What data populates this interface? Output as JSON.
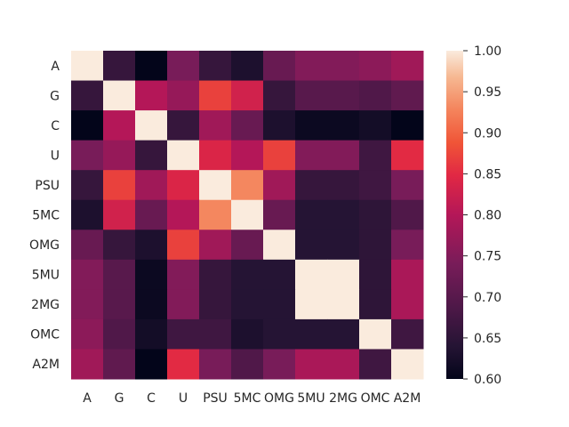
{
  "chart_data": {
    "type": "heatmap",
    "title": "",
    "xlabel": "",
    "ylabel": "",
    "row_labels": [
      "A",
      "G",
      "C",
      "U",
      "PSU",
      "5MC",
      "OMG",
      "5MU",
      "2MG",
      "OMC",
      "A2M"
    ],
    "col_labels": [
      "A",
      "G",
      "C",
      "U",
      "PSU",
      "5MC",
      "OMG",
      "5MU",
      "2MG",
      "OMC",
      "A2M"
    ],
    "values": [
      [
        1.0,
        0.66,
        0.6,
        0.74,
        0.66,
        0.63,
        0.72,
        0.75,
        0.75,
        0.76,
        0.78
      ],
      [
        0.66,
        1.0,
        0.8,
        0.77,
        0.87,
        0.83,
        0.66,
        0.7,
        0.7,
        0.69,
        0.71
      ],
      [
        0.6,
        0.8,
        1.0,
        0.66,
        0.78,
        0.72,
        0.63,
        0.61,
        0.61,
        0.62,
        0.6
      ],
      [
        0.74,
        0.77,
        0.66,
        1.0,
        0.84,
        0.8,
        0.87,
        0.75,
        0.75,
        0.67,
        0.85
      ],
      [
        0.66,
        0.87,
        0.78,
        0.84,
        1.0,
        0.93,
        0.78,
        0.66,
        0.66,
        0.67,
        0.74
      ],
      [
        0.63,
        0.83,
        0.72,
        0.8,
        0.93,
        1.0,
        0.72,
        0.64,
        0.64,
        0.65,
        0.69
      ],
      [
        0.72,
        0.66,
        0.63,
        0.87,
        0.78,
        0.72,
        1.0,
        0.64,
        0.64,
        0.65,
        0.74
      ],
      [
        0.75,
        0.7,
        0.61,
        0.75,
        0.66,
        0.64,
        0.64,
        1.0,
        1.0,
        0.65,
        0.79
      ],
      [
        0.75,
        0.7,
        0.61,
        0.75,
        0.66,
        0.64,
        0.64,
        1.0,
        1.0,
        0.65,
        0.79
      ],
      [
        0.76,
        0.69,
        0.62,
        0.67,
        0.67,
        0.63,
        0.64,
        0.64,
        0.64,
        1.0,
        0.67
      ],
      [
        0.78,
        0.71,
        0.6,
        0.85,
        0.74,
        0.69,
        0.74,
        0.79,
        0.79,
        0.67,
        1.0
      ]
    ],
    "colorbar": {
      "range": [
        0.6,
        1.0
      ],
      "ticks": [
        "0.60",
        "0.65",
        "0.70",
        "0.75",
        "0.80",
        "0.85",
        "0.90",
        "0.95",
        "1.00"
      ],
      "colormap": "rocket",
      "placement": "right"
    },
    "grid": false
  }
}
